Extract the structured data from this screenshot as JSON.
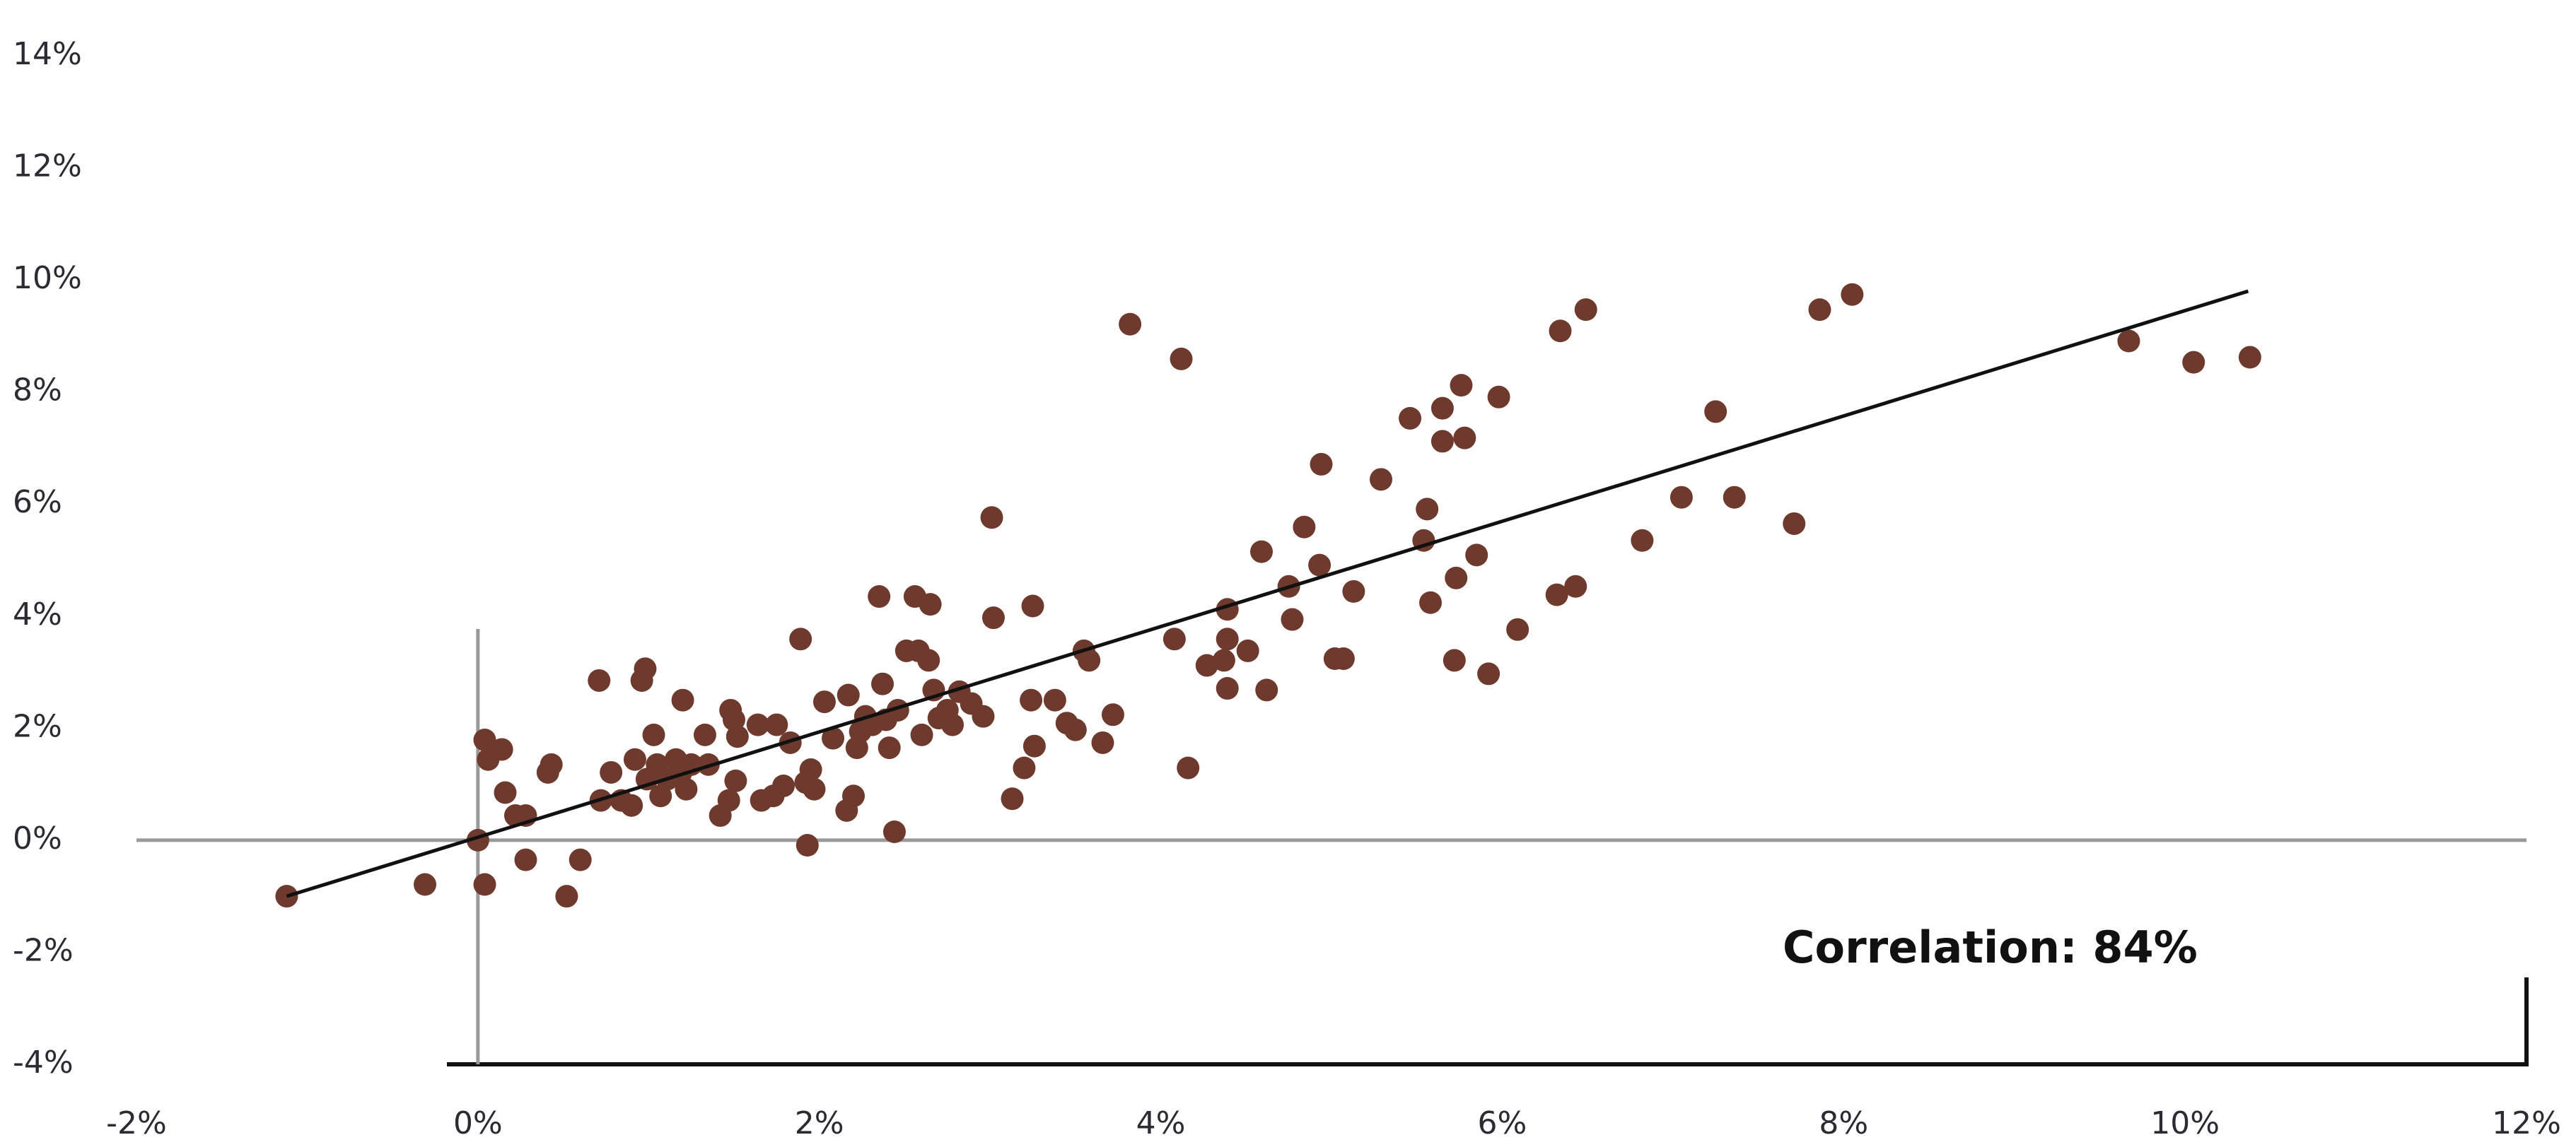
{
  "chart_data": {
    "type": "scatter",
    "annotation": "Correlation: 84%",
    "color": "#6e3a2e",
    "trendline_color": "#111111",
    "x": [
      -1.12,
      -0.31,
      0.04,
      0.06,
      0.14,
      0.04,
      0,
      0.16,
      0.22,
      0.28,
      0.28,
      0.41,
      0.43,
      0.52,
      0.6,
      0.71,
      0.72,
      0.78,
      0.84,
      0.9,
      0.92,
      0.96,
      0.98,
      0.99,
      1.03,
      1.05,
      1.07,
      1.11,
      1.16,
      1.19,
      1.22,
      1.2,
      1.25,
      1.35,
      1.33,
      1.42,
      1.47,
      1.48,
      1.5,
      1.51,
      1.52,
      1.64,
      1.66,
      1.73,
      1.75,
      1.79,
      1.83,
      1.89,
      1.93,
      1.92,
      1.95,
      1.97,
      2.03,
      2.08,
      2.16,
      2.17,
      2.2,
      2.22,
      2.24,
      2.27,
      2.31,
      2.35,
      2.37,
      2.39,
      2.41,
      2.44,
      2.46,
      2.51,
      2.56,
      2.58,
      2.6,
      2.64,
      2.65,
      2.67,
      2.7,
      2.75,
      2.78,
      2.82,
      2.89,
      2.96,
      3.01,
      3.02,
      3.13,
      3.2,
      3.24,
      3.25,
      3.26,
      3.38,
      3.45,
      3.5,
      3.55,
      3.58,
      3.66,
      3.72,
      3.82,
      4.08,
      4.12,
      4.16,
      4.27,
      4.37,
      4.39,
      4.39,
      4.39,
      4.51,
      4.59,
      4.62,
      4.75,
      4.77,
      4.84,
      4.93,
      4.94,
      5.02,
      5.07,
      5.13,
      5.29,
      5.46,
      5.54,
      5.56,
      5.58,
      5.65,
      5.65,
      5.72,
      5.73,
      5.76,
      5.78,
      5.85,
      5.92,
      5.98,
      6.09,
      6.32,
      6.34,
      6.43,
      6.49,
      6.82,
      7.05,
      7.25,
      7.36,
      7.71,
      7.86,
      8.05,
      9.67,
      10.05,
      10.38
    ],
    "values": [
      -1.0,
      -0.79,
      1.79,
      1.44,
      1.62,
      -0.79,
      0,
      0.85,
      0.44,
      0.44,
      -0.35,
      1.21,
      1.35,
      -1.0,
      -0.35,
      2.85,
      0.71,
      1.21,
      0.71,
      0.62,
      1.44,
      2.85,
      3.06,
      1.09,
      1.88,
      1.35,
      0.79,
      1.09,
      1.44,
      1.21,
      0.91,
      2.5,
      1.35,
      1.35,
      1.88,
      0.44,
      0.71,
      2.32,
      2.15,
      1.06,
      1.85,
      2.06,
      0.71,
      0.79,
      2.06,
      0.97,
      1.74,
      3.59,
      -0.09,
      1.03,
      1.26,
      0.91,
      2.47,
      1.82,
      0.53,
      2.59,
      0.79,
      1.65,
      1.94,
      2.21,
      2.06,
      4.35,
      2.79,
      2.15,
      1.65,
      0.15,
      2.32,
      3.38,
      4.35,
      3.38,
      1.88,
      3.21,
      4.21,
      2.68,
      2.18,
      2.32,
      2.06,
      2.65,
      2.44,
      2.21,
      5.76,
      3.97,
      0.74,
      1.29,
      2.5,
      4.18,
      1.68,
      2.5,
      2.09,
      1.97,
      3.38,
      3.21,
      1.74,
      2.24,
      9.21,
      3.59,
      8.59,
      1.29,
      3.12,
      3.21,
      4.12,
      3.59,
      2.71,
      3.38,
      5.15,
      2.68,
      4.53,
      3.94,
      5.59,
      4.91,
      6.71,
      3.24,
      3.24,
      4.44,
      6.44,
      7.53,
      5.35,
      5.91,
      4.24,
      7.71,
      7.12,
      3.21,
      4.68,
      8.12,
      7.18,
      5.09,
      2.97,
      7.91,
      3.76,
      4.38,
      9.09,
      4.53,
      9.47,
      5.35,
      6.12,
      7.65,
      6.12,
      5.65,
      9.47,
      9.74,
      8.91,
      8.53,
      8.62
    ],
    "trendline": {
      "x": [
        -1.12,
        10.37
      ],
      "y": [
        -1.0,
        9.8
      ]
    },
    "xlim": [
      -2,
      12
    ],
    "xticks": [
      {
        "value": -2,
        "label": "-2%"
      },
      {
        "value": 0,
        "label": "0%"
      },
      {
        "value": 2,
        "label": "2%"
      },
      {
        "value": 4,
        "label": "4%"
      },
      {
        "value": 6,
        "label": "6%"
      },
      {
        "value": 8,
        "label": "8%"
      },
      {
        "value": 10,
        "label": "10%"
      },
      {
        "value": 12,
        "label": "12%"
      }
    ],
    "ylim": [
      -4,
      14
    ],
    "yticks": [
      {
        "value": -4,
        "label": "-4%"
      },
      {
        "value": -2,
        "label": "-2%"
      },
      {
        "value": 0,
        "label": "0%"
      },
      {
        "value": 2,
        "label": "2%"
      },
      {
        "value": 4,
        "label": "4%"
      },
      {
        "value": 6,
        "label": "6%"
      },
      {
        "value": 8,
        "label": "8%"
      },
      {
        "value": 10,
        "label": "10%"
      },
      {
        "value": 12,
        "label": "12%"
      },
      {
        "value": 14,
        "label": "14%"
      }
    ]
  }
}
